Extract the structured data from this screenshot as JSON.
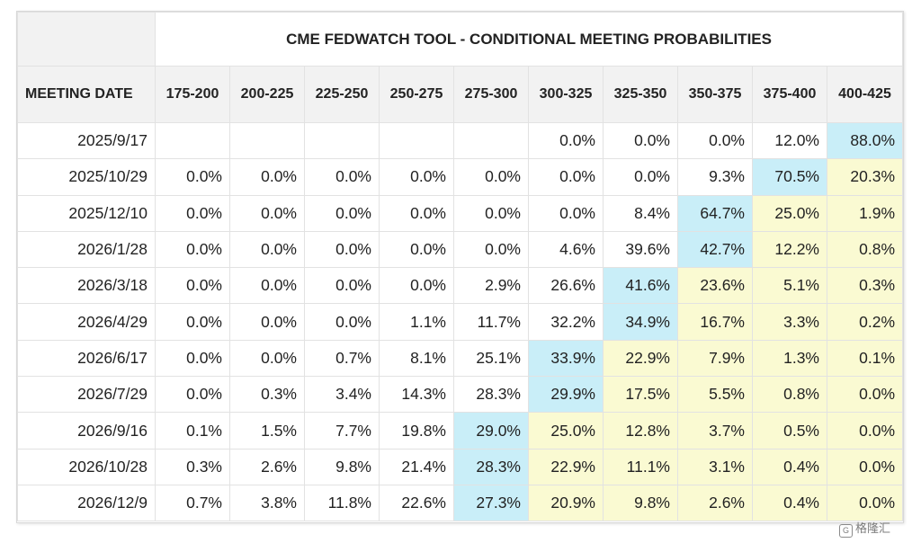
{
  "chart_data": {
    "type": "table",
    "title": "CME FEDWATCH TOOL - CONDITIONAL MEETING PROBABILITIES",
    "row_header_label": "MEETING DATE",
    "columns": [
      "175-200",
      "200-225",
      "225-250",
      "250-275",
      "275-300",
      "300-325",
      "325-350",
      "350-375",
      "375-400",
      "400-425"
    ],
    "rows": [
      {
        "date": "2025/9/17",
        "values": [
          "",
          "",
          "",
          "",
          "",
          "0.0%",
          "0.0%",
          "0.0%",
          "12.0%",
          "88.0%"
        ]
      },
      {
        "date": "2025/10/29",
        "values": [
          "0.0%",
          "0.0%",
          "0.0%",
          "0.0%",
          "0.0%",
          "0.0%",
          "0.0%",
          "9.3%",
          "70.5%",
          "20.3%"
        ]
      },
      {
        "date": "2025/12/10",
        "values": [
          "0.0%",
          "0.0%",
          "0.0%",
          "0.0%",
          "0.0%",
          "0.0%",
          "8.4%",
          "64.7%",
          "25.0%",
          "1.9%"
        ]
      },
      {
        "date": "2026/1/28",
        "values": [
          "0.0%",
          "0.0%",
          "0.0%",
          "0.0%",
          "0.0%",
          "4.6%",
          "39.6%",
          "42.7%",
          "12.2%",
          "0.8%"
        ]
      },
      {
        "date": "2026/3/18",
        "values": [
          "0.0%",
          "0.0%",
          "0.0%",
          "0.0%",
          "2.9%",
          "26.6%",
          "41.6%",
          "23.6%",
          "5.1%",
          "0.3%"
        ]
      },
      {
        "date": "2026/4/29",
        "values": [
          "0.0%",
          "0.0%",
          "0.0%",
          "1.1%",
          "11.7%",
          "32.2%",
          "34.9%",
          "16.7%",
          "3.3%",
          "0.2%"
        ]
      },
      {
        "date": "2026/6/17",
        "values": [
          "0.0%",
          "0.0%",
          "0.7%",
          "8.1%",
          "25.1%",
          "33.9%",
          "22.9%",
          "7.9%",
          "1.3%",
          "0.1%"
        ]
      },
      {
        "date": "2026/7/29",
        "values": [
          "0.0%",
          "0.3%",
          "3.4%",
          "14.3%",
          "28.3%",
          "29.9%",
          "17.5%",
          "5.5%",
          "0.8%",
          "0.0%"
        ]
      },
      {
        "date": "2026/9/16",
        "values": [
          "0.1%",
          "1.5%",
          "7.7%",
          "19.8%",
          "29.0%",
          "25.0%",
          "12.8%",
          "3.7%",
          "0.5%",
          "0.0%"
        ]
      },
      {
        "date": "2026/10/28",
        "values": [
          "0.3%",
          "2.6%",
          "9.8%",
          "21.4%",
          "28.3%",
          "22.9%",
          "11.1%",
          "3.1%",
          "0.4%",
          "0.0%"
        ]
      },
      {
        "date": "2026/12/9",
        "values": [
          "0.7%",
          "3.8%",
          "11.8%",
          "22.6%",
          "27.3%",
          "20.9%",
          "9.8%",
          "2.6%",
          "0.4%",
          "0.0%"
        ]
      }
    ],
    "cell_shading": [
      [
        "n",
        "n",
        "n",
        "n",
        "n",
        "n",
        "n",
        "n",
        "n",
        "b"
      ],
      [
        "n",
        "n",
        "n",
        "n",
        "n",
        "n",
        "n",
        "n",
        "b",
        "y"
      ],
      [
        "n",
        "n",
        "n",
        "n",
        "n",
        "n",
        "n",
        "b",
        "y",
        "y"
      ],
      [
        "n",
        "n",
        "n",
        "n",
        "n",
        "n",
        "n",
        "b",
        "y",
        "y"
      ],
      [
        "n",
        "n",
        "n",
        "n",
        "n",
        "n",
        "b",
        "y",
        "y",
        "y"
      ],
      [
        "n",
        "n",
        "n",
        "n",
        "n",
        "n",
        "b",
        "y",
        "y",
        "y"
      ],
      [
        "n",
        "n",
        "n",
        "n",
        "n",
        "b",
        "y",
        "y",
        "y",
        "y"
      ],
      [
        "n",
        "n",
        "n",
        "n",
        "n",
        "b",
        "y",
        "y",
        "y",
        "y"
      ],
      [
        "n",
        "n",
        "n",
        "n",
        "b",
        "y",
        "y",
        "y",
        "y",
        "y"
      ],
      [
        "n",
        "n",
        "n",
        "n",
        "b",
        "y",
        "y",
        "y",
        "y",
        "y"
      ],
      [
        "n",
        "n",
        "n",
        "n",
        "b",
        "y",
        "y",
        "y",
        "y",
        "y"
      ]
    ],
    "colors": {
      "highest": "#c9eef8",
      "above_highest": "#fafad2",
      "header": "#f2f2f2"
    }
  },
  "watermark": {
    "text": "格隆汇",
    "logo_glyph": "G"
  }
}
